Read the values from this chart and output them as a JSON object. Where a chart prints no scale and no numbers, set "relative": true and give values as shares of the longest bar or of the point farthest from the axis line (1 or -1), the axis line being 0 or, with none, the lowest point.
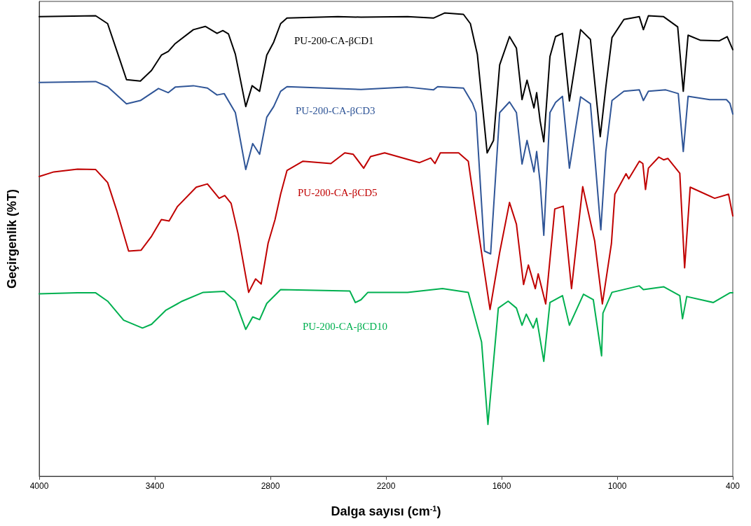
{
  "chart_data": {
    "type": "line",
    "relative": true,
    "xlabel": "Dalga sayısı (cm$^{-1}$)",
    "ylabel": "Geçirgenlik (%T)",
    "xlim": [
      4000,
      400
    ],
    "xticks": [
      4000,
      3400,
      2800,
      2200,
      1600,
      1000,
      400
    ],
    "grid": false,
    "legend": false,
    "marker": "none",
    "line_style": "solid",
    "series": [
      {
        "name": "PU-200-CA-βCD1",
        "color": "#000000",
        "x": [
          4000,
          3707,
          3645,
          3584,
          3547,
          3475,
          3417,
          3366,
          3330,
          3294,
          3200,
          3138,
          3077,
          3047,
          3018,
          2982,
          2928,
          2895,
          2856,
          2819,
          2783,
          2747,
          2714,
          2450,
          2330,
          2088,
          1954,
          1896,
          1798,
          1762,
          1726,
          1675,
          1642,
          1610,
          1559,
          1523,
          1494,
          1468,
          1432,
          1418,
          1400,
          1381,
          1349,
          1320,
          1284,
          1248,
          1190,
          1139,
          1088,
          1059,
          1027,
          965,
          885,
          864,
          838,
          759,
          686,
          657,
          632,
          567,
          469,
          429,
          400
        ],
        "values": [
          0.992,
          0.994,
          0.977,
          0.902,
          0.856,
          0.853,
          0.876,
          0.909,
          0.917,
          0.934,
          0.964,
          0.971,
          0.956,
          0.962,
          0.955,
          0.911,
          0.798,
          0.843,
          0.831,
          0.909,
          0.937,
          0.977,
          0.989,
          0.992,
          0.991,
          0.992,
          0.989,
          1.0,
          0.997,
          0.977,
          0.911,
          0.698,
          0.725,
          0.888,
          0.949,
          0.924,
          0.813,
          0.855,
          0.795,
          0.828,
          0.767,
          0.722,
          0.906,
          0.949,
          0.956,
          0.81,
          0.964,
          0.943,
          0.733,
          0.84,
          0.947,
          0.986,
          0.992,
          0.964,
          0.994,
          0.992,
          0.97,
          0.831,
          0.952,
          0.941,
          0.94,
          0.949,
          0.921
        ]
      },
      {
        "name": "PU-200-CA-βCD3",
        "color": "#2f5597",
        "x": [
          4000,
          3707,
          3645,
          3547,
          3475,
          3381,
          3330,
          3294,
          3200,
          3127,
          3077,
          3040,
          2982,
          2928,
          2892,
          2856,
          2819,
          2783,
          2747,
          2714,
          2330,
          2088,
          1954,
          1932,
          1798,
          1751,
          1733,
          1689,
          1657,
          1610,
          1559,
          1523,
          1494,
          1468,
          1432,
          1418,
          1400,
          1381,
          1349,
          1320,
          1284,
          1248,
          1190,
          1139,
          1085,
          1059,
          1027,
          965,
          885,
          864,
          838,
          748,
          683,
          657,
          632,
          520,
          433,
          415,
          400
        ],
        "values": [
          0.85,
          0.852,
          0.841,
          0.804,
          0.811,
          0.837,
          0.828,
          0.84,
          0.843,
          0.838,
          0.823,
          0.826,
          0.785,
          0.662,
          0.718,
          0.695,
          0.775,
          0.798,
          0.831,
          0.841,
          0.835,
          0.84,
          0.834,
          0.841,
          0.838,
          0.805,
          0.785,
          0.486,
          0.48,
          0.785,
          0.808,
          0.785,
          0.674,
          0.725,
          0.657,
          0.701,
          0.634,
          0.52,
          0.785,
          0.807,
          0.82,
          0.665,
          0.819,
          0.804,
          0.532,
          0.701,
          0.811,
          0.831,
          0.834,
          0.811,
          0.831,
          0.834,
          0.826,
          0.701,
          0.82,
          0.813,
          0.813,
          0.805,
          0.782
        ]
      },
      {
        "name": "PU-200-CA-βCD5",
        "color": "#c00000",
        "x": [
          4000,
          3924,
          3801,
          3707,
          3645,
          3598,
          3536,
          3471,
          3417,
          3366,
          3326,
          3283,
          3185,
          3127,
          3066,
          3037,
          3004,
          2968,
          2913,
          2877,
          2848,
          2812,
          2776,
          2747,
          2714,
          2631,
          2486,
          2414,
          2370,
          2316,
          2280,
          2207,
          2088,
          2026,
          1968,
          1946,
          1918,
          1823,
          1773,
          1726,
          1660,
          1610,
          1559,
          1523,
          1486,
          1461,
          1425,
          1410,
          1371,
          1324,
          1280,
          1237,
          1179,
          1117,
          1077,
          1030,
          1012,
          954,
          940,
          885,
          867,
          853,
          838,
          784,
          759,
          737,
          675,
          650,
          621,
          494,
          422,
          400
        ],
        "values": [
          0.647,
          0.657,
          0.663,
          0.662,
          0.634,
          0.574,
          0.486,
          0.488,
          0.518,
          0.554,
          0.551,
          0.582,
          0.624,
          0.631,
          0.6,
          0.606,
          0.589,
          0.524,
          0.397,
          0.426,
          0.415,
          0.503,
          0.554,
          0.609,
          0.66,
          0.68,
          0.675,
          0.698,
          0.695,
          0.665,
          0.69,
          0.698,
          0.684,
          0.677,
          0.687,
          0.675,
          0.698,
          0.698,
          0.68,
          0.544,
          0.36,
          0.483,
          0.591,
          0.544,
          0.414,
          0.456,
          0.405,
          0.437,
          0.372,
          0.577,
          0.583,
          0.405,
          0.625,
          0.508,
          0.372,
          0.502,
          0.609,
          0.653,
          0.642,
          0.68,
          0.675,
          0.619,
          0.665,
          0.689,
          0.683,
          0.686,
          0.654,
          0.45,
          0.624,
          0.6,
          0.609,
          0.562
        ]
      },
      {
        "name": "PU-200-CA-βCD10",
        "color": "#00b050",
        "x": [
          4000,
          3801,
          3707,
          3645,
          3562,
          3464,
          3417,
          3344,
          3258,
          3149,
          3040,
          2982,
          2928,
          2892,
          2856,
          2819,
          2747,
          2388,
          2359,
          2330,
          2294,
          2088,
          1907,
          1773,
          1704,
          1671,
          1617,
          1566,
          1523,
          1494,
          1472,
          1436,
          1418,
          1381,
          1349,
          1284,
          1248,
          1175,
          1124,
          1081,
          1074,
          1027,
          885,
          864,
          759,
          675,
          661,
          639,
          501,
          415,
          400
        ],
        "values": [
          0.394,
          0.396,
          0.396,
          0.378,
          0.337,
          0.32,
          0.328,
          0.358,
          0.378,
          0.397,
          0.399,
          0.378,
          0.317,
          0.344,
          0.338,
          0.373,
          0.403,
          0.4,
          0.375,
          0.381,
          0.397,
          0.397,
          0.405,
          0.397,
          0.29,
          0.112,
          0.363,
          0.378,
          0.363,
          0.326,
          0.35,
          0.32,
          0.341,
          0.248,
          0.375,
          0.39,
          0.326,
          0.393,
          0.381,
          0.26,
          0.352,
          0.397,
          0.411,
          0.403,
          0.409,
          0.39,
          0.34,
          0.388,
          0.375,
          0.396,
          0.396
        ]
      }
    ]
  }
}
